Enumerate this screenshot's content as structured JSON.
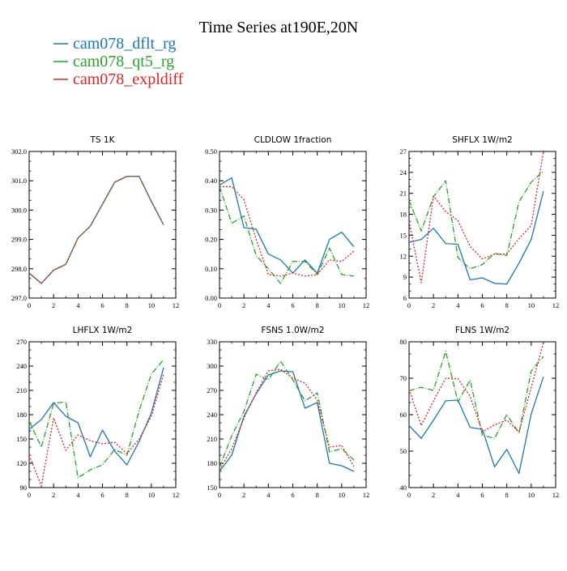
{
  "title": "Time Series at190E,20N",
  "legend": [
    {
      "label": "cam078_dflt_rg",
      "color": "#1f77b4",
      "dash": "solid"
    },
    {
      "label": "cam078_qt5_rg",
      "color": "#2ca02c",
      "dash": "dashdot"
    },
    {
      "label": "cam078_expldiff",
      "color": "#d62728",
      "dash": "dotted"
    }
  ],
  "chart_data": [
    {
      "type": "line",
      "title": "TS   1K",
      "x": [
        0,
        1,
        2,
        3,
        4,
        5,
        6,
        7,
        8,
        9,
        10,
        11
      ],
      "xlim": [
        0,
        12
      ],
      "xticks": [
        "0",
        "2",
        "4",
        "6",
        "8",
        "10",
        "12"
      ],
      "ylim": [
        297.0,
        302.0
      ],
      "yticks": [
        "297.0",
        "298.0",
        "299.0",
        "300.0",
        "301.0",
        "302.0"
      ],
      "series": [
        {
          "name": "cam078_dflt_rg",
          "values": [
            297.85,
            297.5,
            297.95,
            298.15,
            299.05,
            299.45,
            300.2,
            300.95,
            301.15,
            301.15,
            300.3,
            299.5
          ]
        },
        {
          "name": "cam078_qt5_rg",
          "values": [
            297.85,
            297.5,
            297.95,
            298.15,
            299.05,
            299.45,
            300.2,
            300.95,
            301.15,
            301.15,
            300.3,
            299.5
          ]
        },
        {
          "name": "cam078_expldiff",
          "values": [
            297.85,
            297.5,
            297.95,
            298.15,
            299.05,
            299.45,
            300.2,
            300.95,
            301.15,
            301.15,
            300.3,
            299.5
          ]
        }
      ]
    },
    {
      "type": "line",
      "title": "CLDLOW   1fraction",
      "x": [
        0,
        1,
        2,
        3,
        4,
        5,
        6,
        7,
        8,
        9,
        10,
        11
      ],
      "xlim": [
        0,
        12
      ],
      "xticks": [
        "0",
        "2",
        "4",
        "6",
        "8",
        "10",
        "12"
      ],
      "ylim": [
        0.0,
        0.5
      ],
      "yticks": [
        "0.00",
        "0.10",
        "0.20",
        "0.30",
        "0.40",
        "0.50"
      ],
      "series": [
        {
          "name": "cam078_dflt_rg",
          "values": [
            0.385,
            0.41,
            0.24,
            0.235,
            0.15,
            0.13,
            0.085,
            0.13,
            0.085,
            0.2,
            0.225,
            0.175
          ]
        },
        {
          "name": "cam078_qt5_rg",
          "values": [
            0.38,
            0.255,
            0.28,
            0.145,
            0.1,
            0.05,
            0.125,
            0.125,
            0.08,
            0.17,
            0.08,
            0.075
          ]
        },
        {
          "name": "cam078_expldiff",
          "values": [
            0.38,
            0.38,
            0.335,
            0.2,
            0.08,
            0.075,
            0.085,
            0.075,
            0.08,
            0.13,
            0.125,
            0.16
          ]
        }
      ]
    },
    {
      "type": "line",
      "title": "SHFLX   1W/m2",
      "x": [
        0,
        1,
        2,
        3,
        4,
        5,
        6,
        7,
        8,
        9,
        10,
        11
      ],
      "xlim": [
        0,
        12
      ],
      "xticks": [
        "0",
        "2",
        "4",
        "6",
        "8",
        "10",
        "12"
      ],
      "ylim": [
        6,
        27
      ],
      "yticks": [
        "6",
        "9",
        "12",
        "15",
        "18",
        "21",
        "24",
        "27"
      ],
      "series": [
        {
          "name": "cam078_dflt_rg",
          "values": [
            14.0,
            14.4,
            16.0,
            13.8,
            13.7,
            8.6,
            8.9,
            8.1,
            8.0,
            11.0,
            14.4,
            21.3
          ]
        },
        {
          "name": "cam078_qt5_rg",
          "values": [
            20.0,
            15.6,
            20.5,
            22.8,
            11.8,
            10.2,
            10.8,
            12.4,
            12.1,
            19.8,
            22.6,
            24.2
          ]
        },
        {
          "name": "cam078_expldiff",
          "values": [
            17.0,
            8.2,
            20.6,
            18.4,
            17.1,
            13.4,
            11.6,
            12.3,
            12.3,
            14.5,
            16.4,
            27.0
          ]
        }
      ]
    },
    {
      "type": "line",
      "title": "LHFLX   1W/m2",
      "x": [
        0,
        1,
        2,
        3,
        4,
        5,
        6,
        7,
        8,
        9,
        10,
        11
      ],
      "xlim": [
        0,
        12
      ],
      "xticks": [
        "0",
        "2",
        "4",
        "6",
        "8",
        "10",
        "12"
      ],
      "ylim": [
        90,
        270
      ],
      "yticks": [
        "90",
        "120",
        "150",
        "180",
        "210",
        "240",
        "270"
      ],
      "series": [
        {
          "name": "cam078_dflt_rg",
          "values": [
            162,
            174,
            195,
            178,
            170,
            128,
            161,
            135,
            118,
            147,
            182,
            238
          ]
        },
        {
          "name": "cam078_qt5_rg",
          "values": [
            172,
            140,
            194,
            196,
            102,
            112,
            118,
            137,
            130,
            185,
            230,
            248
          ]
        },
        {
          "name": "cam078_expldiff",
          "values": [
            130,
            92,
            176,
            136,
            155,
            148,
            144,
            146,
            132,
            150,
            178,
            230
          ]
        }
      ]
    },
    {
      "type": "line",
      "title": "FSNS   1.0W/m2",
      "x": [
        0,
        1,
        2,
        3,
        4,
        5,
        6,
        7,
        8,
        9,
        10,
        11
      ],
      "xlim": [
        0,
        12
      ],
      "xticks": [
        "0",
        "2",
        "4",
        "6",
        "8",
        "10",
        "12"
      ],
      "ylim": [
        150,
        330
      ],
      "yticks": [
        "150",
        "180",
        "210",
        "240",
        "270",
        "300",
        "330"
      ],
      "series": [
        {
          "name": "cam078_dflt_rg",
          "values": [
            170,
            190,
            238,
            266,
            289,
            294,
            293,
            248,
            255,
            180,
            177,
            170
          ]
        },
        {
          "name": "cam078_qt5_rg",
          "values": [
            175,
            214,
            244,
            290,
            283,
            306,
            283,
            257,
            267,
            194,
            198,
            184
          ]
        },
        {
          "name": "cam078_expldiff",
          "values": [
            172,
            198,
            236,
            267,
            294,
            296,
            285,
            279,
            258,
            200,
            202,
            176
          ]
        }
      ]
    },
    {
      "type": "line",
      "title": "FLNS   1W/m2",
      "x": [
        0,
        1,
        2,
        3,
        4,
        5,
        6,
        7,
        8,
        9,
        10,
        11
      ],
      "xlim": [
        0,
        12
      ],
      "xticks": [
        "0",
        "2",
        "4",
        "6",
        "8",
        "10",
        "12"
      ],
      "ylim": [
        40,
        80
      ],
      "yticks": [
        "40",
        "50",
        "60",
        "70",
        "80"
      ],
      "series": [
        {
          "name": "cam078_dflt_rg",
          "values": [
            57,
            53.5,
            58.5,
            63.8,
            64,
            56.5,
            56,
            45.7,
            50.5,
            43.9,
            60.2,
            70.4
          ]
        },
        {
          "name": "cam078_qt5_rg",
          "values": [
            66.6,
            67.5,
            66.7,
            77.4,
            63.5,
            69.5,
            54.4,
            53.5,
            60,
            55,
            72,
            76
          ]
        },
        {
          "name": "cam078_expldiff",
          "values": [
            67,
            57,
            63.8,
            70,
            69.9,
            65,
            55.3,
            57.2,
            58.5,
            55.2,
            67.5,
            79.8
          ]
        }
      ]
    }
  ]
}
